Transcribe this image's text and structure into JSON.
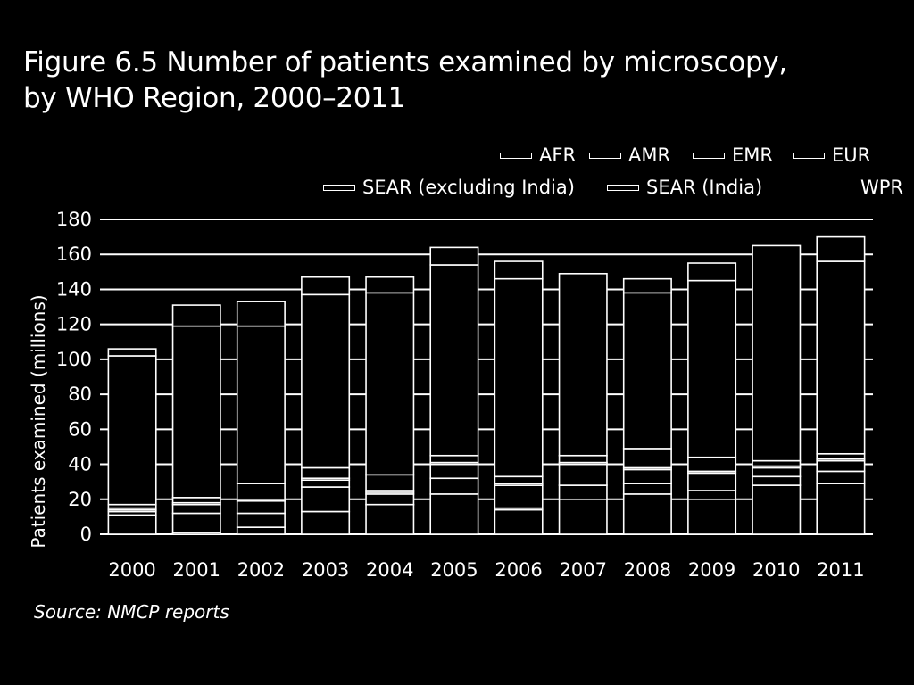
{
  "title_line1": "Figure 6.5 Number of patients examined by microscopy,",
  "title_line2": "by WHO Region, 2000–2011",
  "source": "Source: NMCP reports",
  "chart_data": {
    "type": "bar",
    "stacked": true,
    "categories": [
      "2000",
      "2001",
      "2002",
      "2003",
      "2004",
      "2005",
      "2006",
      "2007",
      "2008",
      "2009",
      "2010",
      "2011"
    ],
    "ylabel": "Patients examined (millions)",
    "xlabel": "",
    "ylim": [
      0,
      180
    ],
    "yticks": [
      0,
      20,
      40,
      60,
      80,
      100,
      120,
      140,
      160,
      180
    ],
    "grid": true,
    "legend_position": "top-right",
    "series": [
      {
        "name": "AFR",
        "values": [
          11,
          1,
          4,
          13,
          17,
          23,
          14,
          20,
          23,
          20,
          28,
          29
        ]
      },
      {
        "name": "AMR",
        "values": [
          2,
          11,
          8,
          14,
          6,
          9,
          1,
          8,
          6,
          5,
          5,
          7
        ]
      },
      {
        "name": "EMR",
        "values": [
          1,
          5,
          7,
          4,
          1,
          8,
          13,
          12,
          8,
          10,
          5,
          6
        ]
      },
      {
        "name": "EUR",
        "values": [
          1,
          1,
          1,
          1,
          1,
          1,
          1,
          1,
          1,
          1,
          1,
          1
        ]
      },
      {
        "name": "SEAR (excluding India)",
        "values": [
          2,
          3,
          9,
          6,
          9,
          4,
          4,
          4,
          11,
          8,
          3,
          3
        ]
      },
      {
        "name": "SEAR (India)",
        "values": [
          85,
          98,
          90,
          99,
          104,
          109,
          113,
          104,
          89,
          101,
          123,
          110
        ]
      },
      {
        "name": "WPR",
        "values": [
          4,
          12,
          14,
          10,
          9,
          10,
          10,
          0,
          8,
          10,
          0,
          14
        ]
      }
    ]
  }
}
